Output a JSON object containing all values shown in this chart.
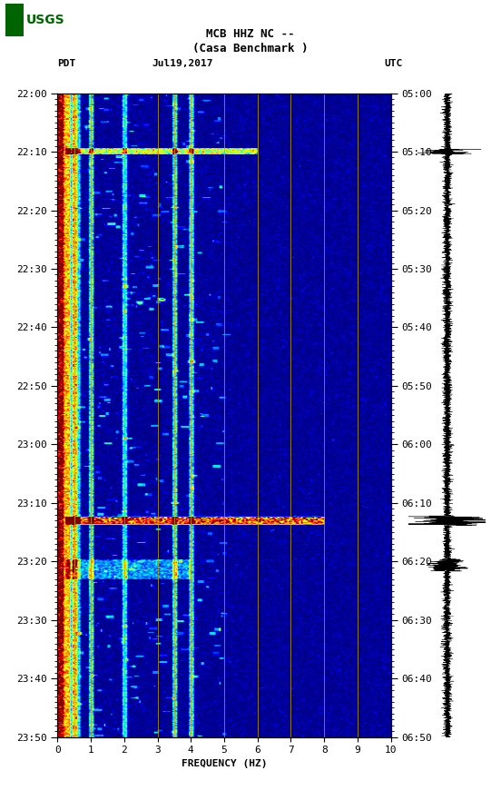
{
  "title_line1": "MCB HHZ NC --",
  "title_line2": "(Casa Benchmark )",
  "title_date": "Jul19,2017",
  "label_left": "PDT",
  "label_right": "UTC",
  "freq_label": "FREQUENCY (HZ)",
  "freq_min": 0,
  "freq_max": 10,
  "time_ticks_pdt": [
    "22:00",
    "22:10",
    "22:20",
    "22:30",
    "22:40",
    "22:50",
    "23:00",
    "23:10",
    "23:20",
    "23:30",
    "23:40",
    "23:50"
  ],
  "time_ticks_utc": [
    "05:00",
    "05:10",
    "05:20",
    "05:30",
    "05:40",
    "05:50",
    "06:00",
    "06:10",
    "06:20",
    "06:30",
    "06:40",
    "06:50"
  ],
  "freq_ticks": [
    0,
    1,
    2,
    3,
    4,
    5,
    6,
    7,
    8,
    9,
    10
  ],
  "vertical_lines_freq": [
    0.5,
    1.0,
    2.0,
    3.0,
    3.5,
    4.0,
    5.0,
    6.0,
    7.0,
    8.0,
    9.0
  ],
  "background_color": "#ffffff",
  "colormap": "jet",
  "spec_bg": "#00008B"
}
